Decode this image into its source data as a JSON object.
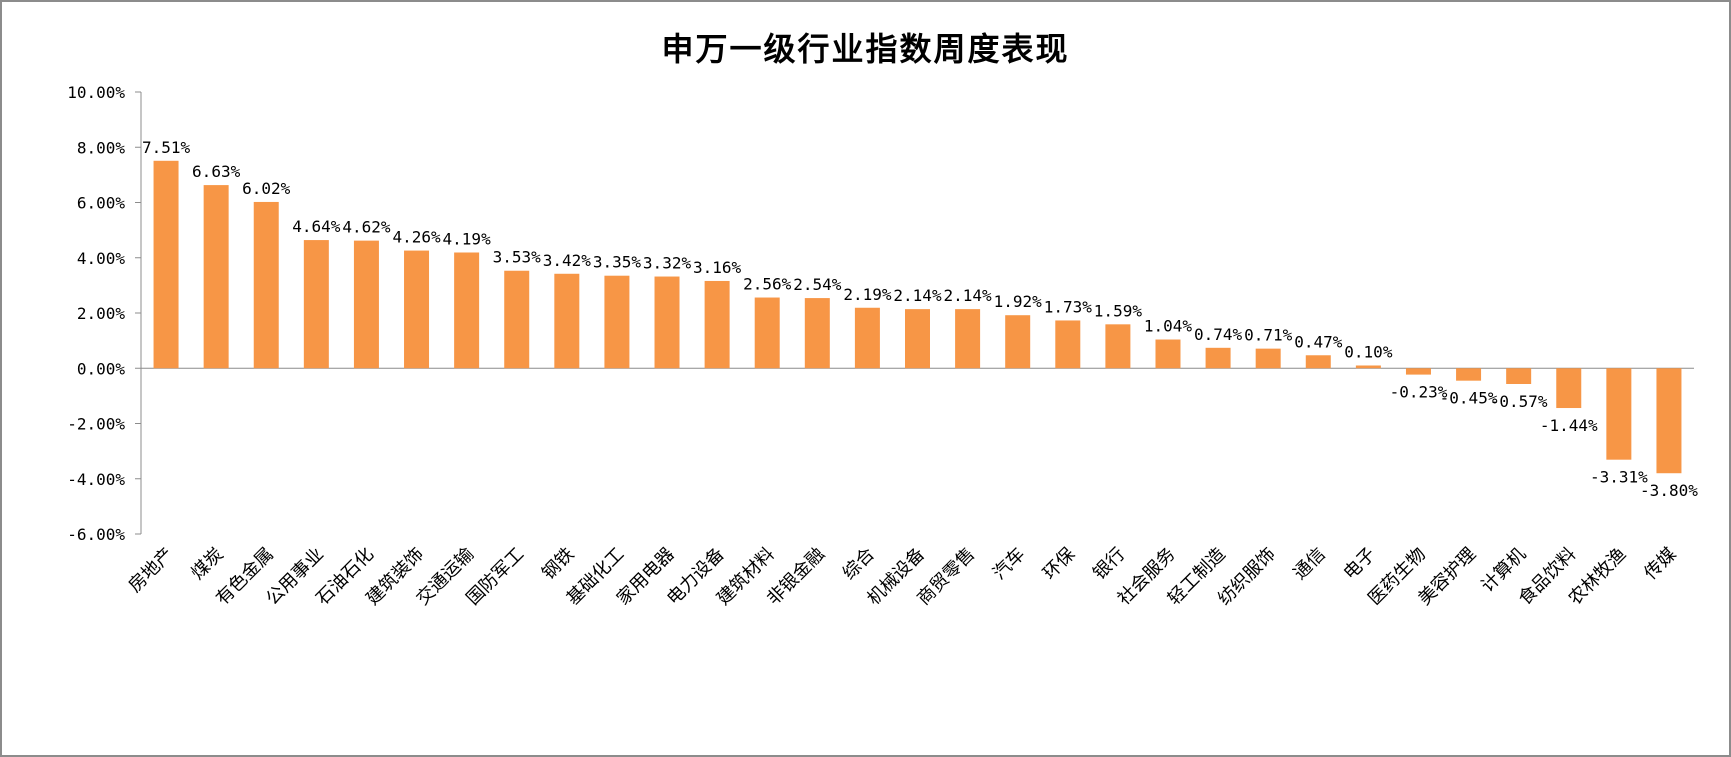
{
  "chart_data": {
    "type": "bar",
    "title": "申万一级行业指数周度表现",
    "xlabel": "",
    "ylabel": "",
    "ylim": [
      -6,
      10
    ],
    "yticks": [
      "10.00%",
      "8.00%",
      "6.00%",
      "4.00%",
      "2.00%",
      "0.00%",
      "-2.00%",
      "-4.00%",
      "-6.00%"
    ],
    "ytick_values": [
      10,
      8,
      6,
      4,
      2,
      0,
      -2,
      -4,
      -6
    ],
    "grid": false,
    "legend": "none",
    "bar_color": "#f79646",
    "axis_color": "#8c8c8c",
    "categories": [
      "房地产",
      "煤炭",
      "有色金属",
      "公用事业",
      "石油石化",
      "建筑装饰",
      "交通运输",
      "国防军工",
      "钢铁",
      "基础化工",
      "家用电器",
      "电力设备",
      "建筑材料",
      "非银金融",
      "综合",
      "机械设备",
      "商贸零售",
      "汽车",
      "环保",
      "银行",
      "社会服务",
      "轻工制造",
      "纺织服饰",
      "通信",
      "电子",
      "医药生物",
      "美容护理",
      "计算机",
      "食品饮料",
      "农林牧渔",
      "传媒"
    ],
    "values": [
      7.51,
      6.63,
      6.02,
      4.64,
      4.62,
      4.26,
      4.19,
      3.53,
      3.42,
      3.35,
      3.32,
      3.16,
      2.56,
      2.54,
      2.19,
      2.14,
      2.14,
      1.92,
      1.73,
      1.59,
      1.04,
      0.74,
      0.71,
      0.47,
      0.1,
      -0.23,
      -0.45,
      -0.57,
      -1.44,
      -3.31,
      -3.8
    ],
    "data_labels": [
      "7.51%",
      "6.63%",
      "6.02%",
      "4.64%",
      "4.62%",
      "4.26%",
      "4.19%",
      "3.53%",
      "3.42%",
      "3.35%",
      "3.32%",
      "3.16%",
      "2.56%",
      "2.54%",
      "2.19%",
      "2.14%",
      "2.14%",
      "1.92%",
      "1.73%",
      "1.59%",
      "1.04%",
      "0.74%",
      "0.71%",
      "0.47%",
      "0.10%",
      "-0.23%",
      "-0.45%",
      "-0.57%",
      "-1.44%",
      "-3.31%",
      "-3.80%"
    ]
  }
}
